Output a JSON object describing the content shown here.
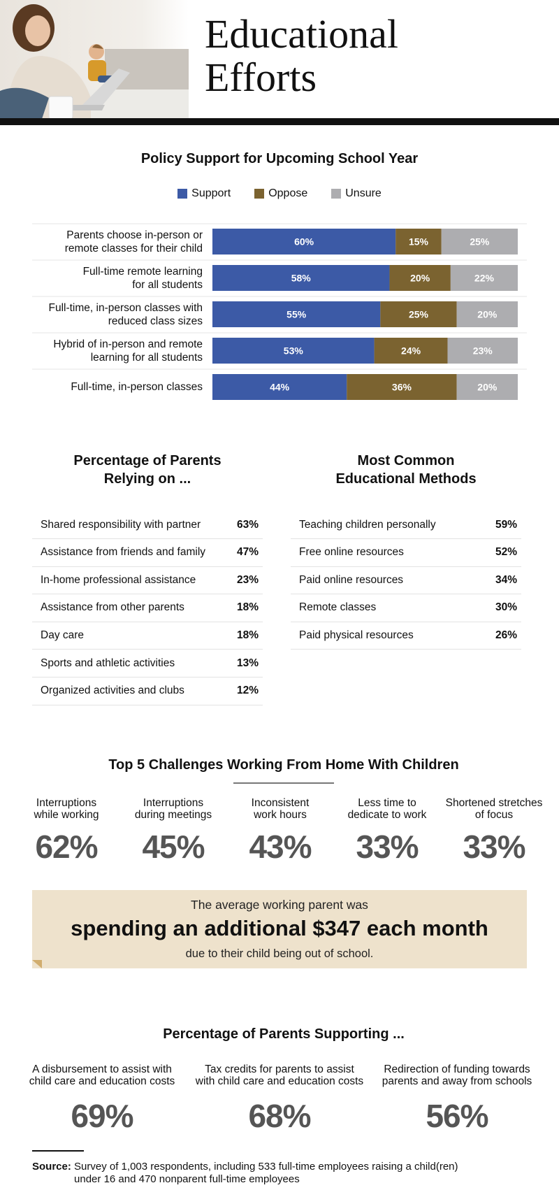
{
  "header": {
    "title_line1": "Educational",
    "title_line2": "Efforts"
  },
  "colors": {
    "support": "#3c5aa6",
    "oppose": "#7b6330",
    "unsure": "#adadb0",
    "rule": "#111111",
    "callout_bg": "#eee2cc"
  },
  "chart_data": [
    {
      "type": "bar",
      "stacked": true,
      "orientation": "horizontal",
      "title": "Policy Support for Upcoming School Year",
      "categories": [
        [
          "Parents choose in-person or",
          "remote classes for their child"
        ],
        [
          "Full-time remote learning",
          "for all students"
        ],
        [
          "Full-time, in-person classes with",
          "reduced class sizes"
        ],
        [
          "Hybrid of in-person and remote",
          "learning for all students"
        ],
        [
          "Full-time, in-person classes"
        ]
      ],
      "series": [
        {
          "name": "Support",
          "values": [
            60,
            58,
            55,
            53,
            44
          ],
          "labels": [
            "60%",
            "58%",
            "55%",
            "53%",
            "44%"
          ]
        },
        {
          "name": "Oppose",
          "values": [
            15,
            20,
            25,
            24,
            36
          ],
          "labels": [
            "15%",
            "20%",
            "25%",
            "24%",
            "36%"
          ]
        },
        {
          "name": "Unsure",
          "values": [
            25,
            22,
            20,
            23,
            20
          ],
          "labels": [
            "25%",
            "22%",
            "20%",
            "23%",
            "20%"
          ]
        }
      ],
      "xlim": [
        0,
        100
      ],
      "legend": "top-center"
    }
  ],
  "relying": {
    "title_line1": "Percentage of Parents",
    "title_line2": "Relying on ...",
    "rows": [
      {
        "label": "Shared responsibility with partner",
        "value": "63%"
      },
      {
        "label": "Assistance from friends and family",
        "value": "47%"
      },
      {
        "label": "In-home professional assistance",
        "value": "23%"
      },
      {
        "label": "Assistance from other parents",
        "value": "18%"
      },
      {
        "label": "Day care",
        "value": "18%"
      },
      {
        "label": "Sports and athletic activities",
        "value": "13%"
      },
      {
        "label": "Organized activities and clubs",
        "value": "12%"
      }
    ]
  },
  "methods": {
    "title_line1": "Most Common",
    "title_line2": "Educational Methods",
    "rows": [
      {
        "label": "Teaching children personally",
        "value": "59%"
      },
      {
        "label": "Free online resources",
        "value": "52%"
      },
      {
        "label": "Paid online resources",
        "value": "34%"
      },
      {
        "label": "Remote classes",
        "value": "30%"
      },
      {
        "label": "Paid physical resources",
        "value": "26%"
      }
    ]
  },
  "challenges": {
    "title": "Top 5 Challenges Working From Home With Children",
    "items": [
      {
        "label_line1": "Interruptions",
        "label_line2": "while working",
        "value": "62%"
      },
      {
        "label_line1": "Interruptions",
        "label_line2": "during meetings",
        "value": "45%"
      },
      {
        "label_line1": "Inconsistent",
        "label_line2": "work hours",
        "value": "43%"
      },
      {
        "label_line1": "Less time to",
        "label_line2": "dedicate to work",
        "value": "33%"
      },
      {
        "label_line1": "Shortened stretches",
        "label_line2": "of focus",
        "value": "33%"
      }
    ]
  },
  "callout": {
    "pre": "The average working parent was",
    "main": "spending an additional $347 each month",
    "post": "due to their child being out of school."
  },
  "supporting": {
    "title": "Percentage of Parents Supporting ...",
    "items": [
      {
        "label_line1": "A disbursement to assist with",
        "label_line2": "child care and education costs",
        "value": "69%"
      },
      {
        "label_line1": "Tax credits for parents to assist",
        "label_line2": "with child care and education costs",
        "value": "68%"
      },
      {
        "label_line1": "Redirection of funding towards",
        "label_line2": "parents and away from schools",
        "value": "56%"
      }
    ]
  },
  "source": {
    "label": "Source:",
    "text_line1": "Survey of 1,003 respondents, including 533 full-time employees raising a child(ren)",
    "text_line2": "under 16 and 470 nonparent full-time employees"
  }
}
